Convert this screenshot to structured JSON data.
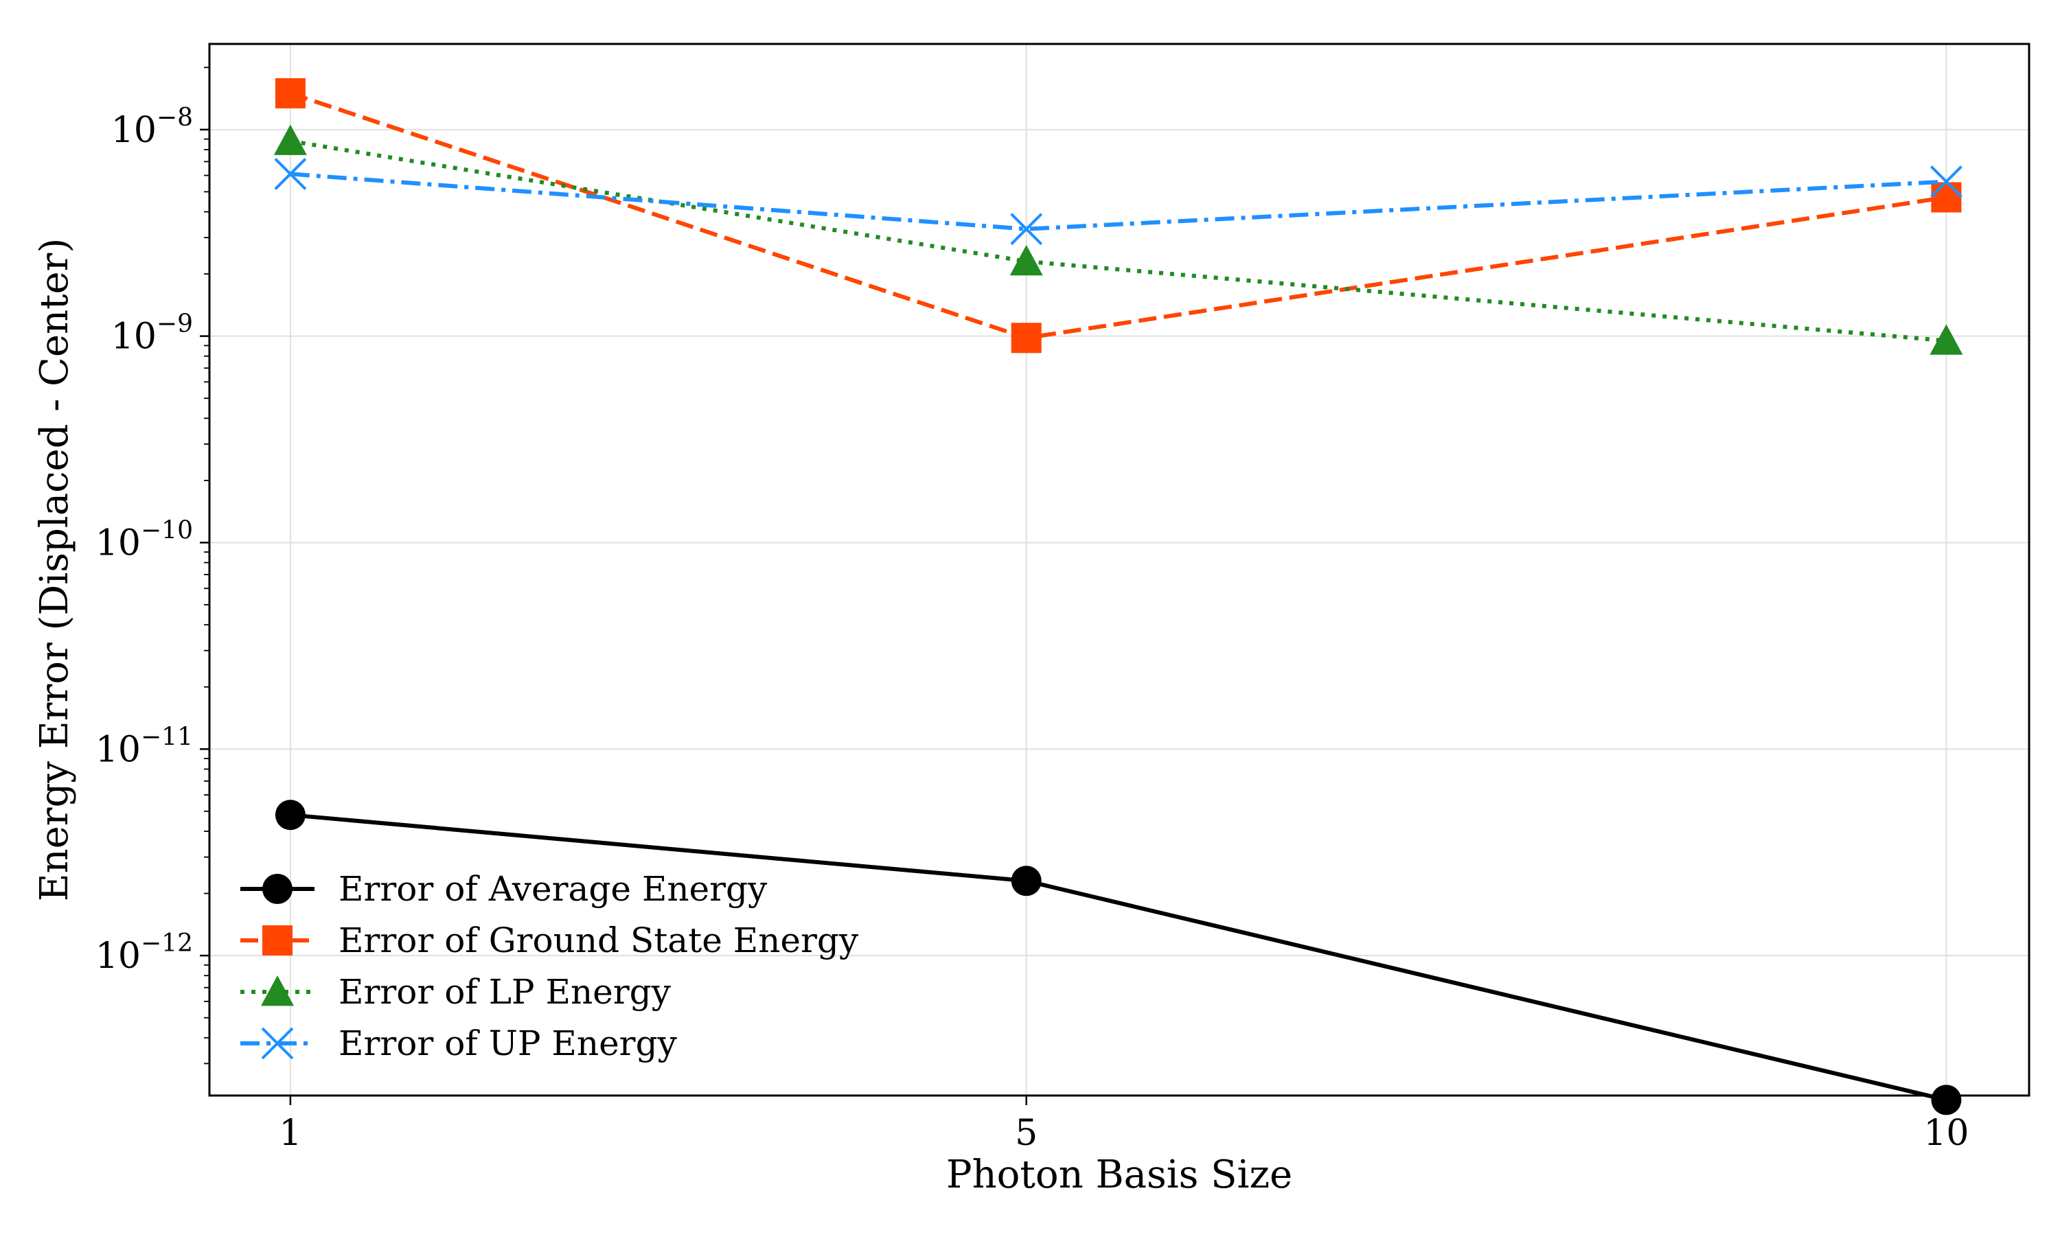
{
  "chart_data": {
    "type": "line",
    "title": "",
    "xlabel": "Photon Basis Size",
    "ylabel": "Energy Error (Displaced - Center)",
    "x": [
      1,
      5,
      10
    ],
    "xticks": [
      "1",
      "5",
      "10"
    ],
    "xlim": [
      0.56,
      10.45
    ],
    "yscale": "log",
    "ylim": [
      2.1e-13,
      2.6e-08
    ],
    "yticks": [
      {
        "base": "10",
        "exp": "−8",
        "value": 1e-08
      },
      {
        "base": "10",
        "exp": "−9",
        "value": 1e-09
      },
      {
        "base": "10",
        "exp": "−10",
        "value": 1e-10
      },
      {
        "base": "10",
        "exp": "−11",
        "value": 1e-11
      },
      {
        "base": "10",
        "exp": "−12",
        "value": 1e-12
      }
    ],
    "grid": true,
    "legend_position": "lower-left",
    "series": [
      {
        "name": "Error of Average Energy",
        "values": [
          4.8e-12,
          2.3e-12,
          2e-13
        ],
        "color": "#000000",
        "dash": "solid",
        "marker": "circle"
      },
      {
        "name": "Error of Ground State Energy",
        "values": [
          1.5e-08,
          9.8e-10,
          4.7e-09
        ],
        "color": "#ff4500",
        "dash": "dashed",
        "marker": "square"
      },
      {
        "name": "Error of LP Energy",
        "values": [
          8.8e-09,
          2.3e-09,
          9.5e-10
        ],
        "color": "#228b22",
        "dash": "dotted",
        "marker": "triangle"
      },
      {
        "name": "Error of UP Energy",
        "values": [
          6.1e-09,
          3.3e-09,
          5.6e-09
        ],
        "color": "#1e90ff",
        "dash": "dashdot",
        "marker": "x"
      }
    ]
  }
}
